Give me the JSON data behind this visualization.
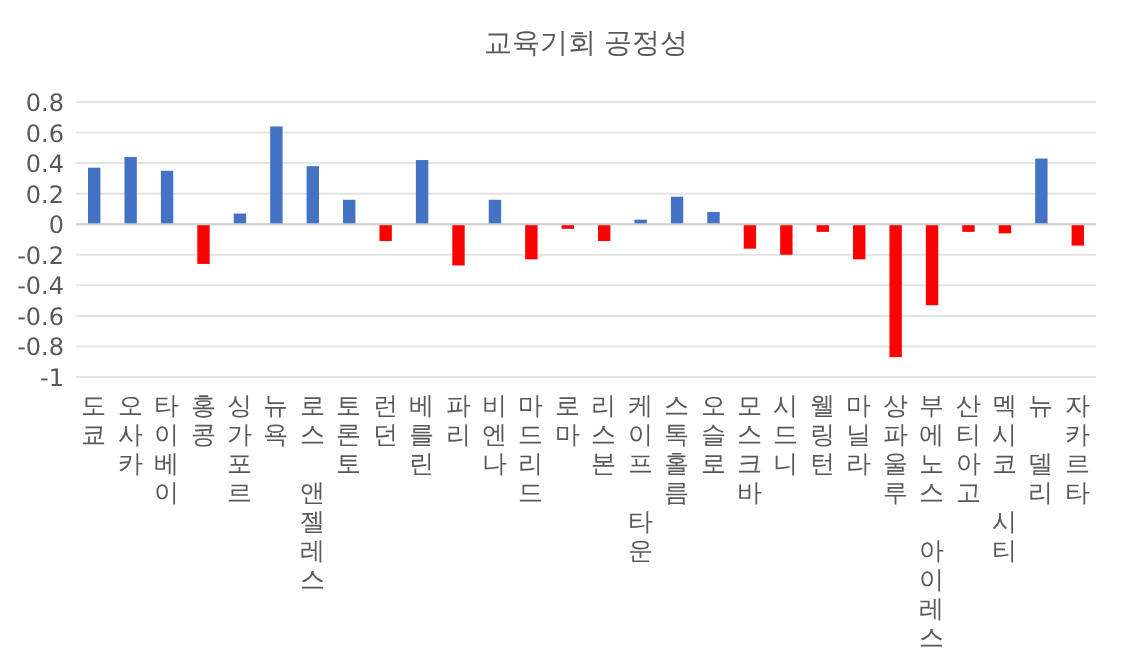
{
  "chart_data": {
    "type": "bar",
    "title": "교육기회 공정성",
    "categories": [
      "도쿄",
      "오사카",
      "타이베이",
      "홍콩",
      "싱가포르",
      "뉴욕",
      "로스 앤젤레스",
      "토론토",
      "런던",
      "베를린",
      "파리",
      "비엔나",
      "마드리드",
      "로마",
      "리스본",
      "케이프 타운",
      "스톡홀름",
      "오슬로",
      "모스크바",
      "시드니",
      "웰링턴",
      "마닐라",
      "상파울루",
      "부에노스 아이레스",
      "산티아고",
      "멕시코 시티",
      "뉴 델리",
      "자카르타"
    ],
    "values": [
      0.37,
      0.44,
      0.35,
      -0.26,
      0.07,
      0.64,
      0.38,
      0.16,
      -0.11,
      0.42,
      -0.27,
      0.16,
      -0.23,
      -0.03,
      -0.11,
      0.03,
      0.18,
      0.08,
      -0.16,
      -0.2,
      -0.05,
      -0.23,
      -0.87,
      -0.53,
      -0.05,
      -0.06,
      0.43,
      -0.14
    ],
    "colors": [
      "#4472c4",
      "#4472c4",
      "#4472c4",
      "#ff0000",
      "#4472c4",
      "#4472c4",
      "#4472c4",
      "#4472c4",
      "#ff0000",
      "#4472c4",
      "#ff0000",
      "#4472c4",
      "#ff0000",
      "#ff0000",
      "#ff0000",
      "#4472c4",
      "#4472c4",
      "#4472c4",
      "#ff0000",
      "#ff0000",
      "#ff0000",
      "#ff0000",
      "#ff0000",
      "#ff0000",
      "#ff0000",
      "#ff0000",
      "#4472c4",
      "#ff0000"
    ],
    "ylim": [
      -1,
      0.8
    ],
    "yticks": [
      {
        "value": -1,
        "label": "-1"
      },
      {
        "value": -0.8,
        "label": "-0.8"
      },
      {
        "value": -0.6,
        "label": "-0.6"
      },
      {
        "value": -0.4,
        "label": "-0.4"
      },
      {
        "value": -0.2,
        "label": "-0.2"
      },
      0,
      0.2,
      0.4,
      0.6,
      0.8
    ],
    "grid": "y"
  }
}
